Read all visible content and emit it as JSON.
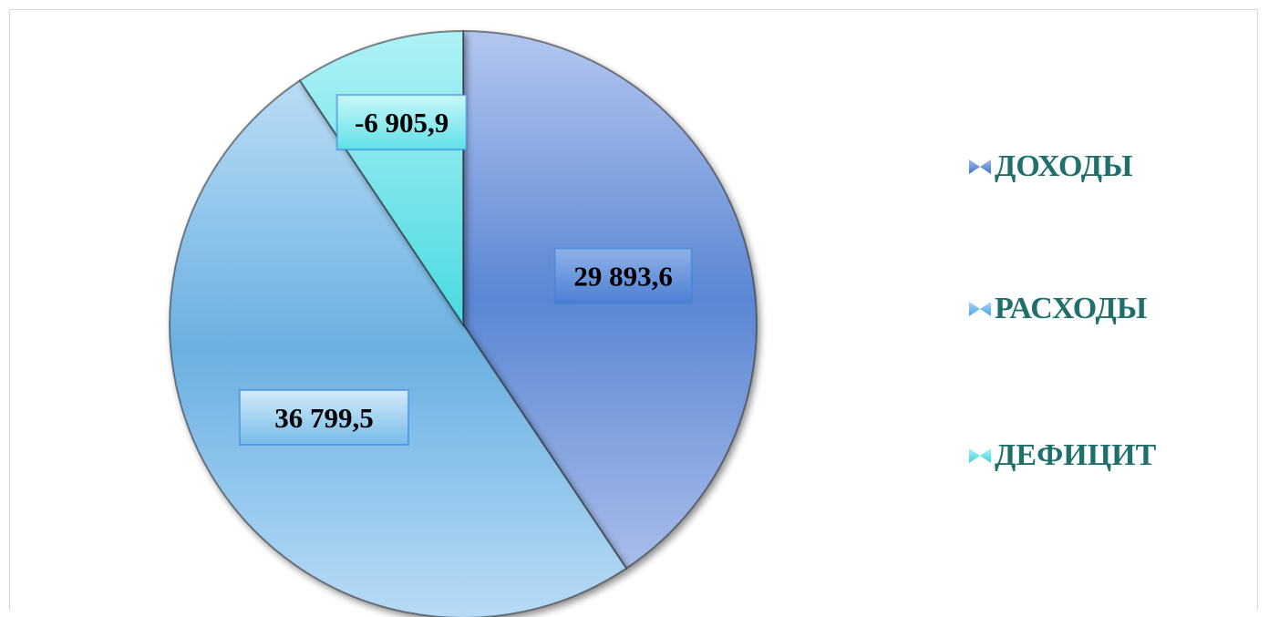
{
  "chart_data": {
    "type": "pie",
    "title": "",
    "slices": [
      {
        "name": "ДОХОДЫ",
        "value": 29893.6,
        "label": "29 893,6",
        "color": "#5f8ed6"
      },
      {
        "name": "РАСХОДЫ",
        "value": 36799.5,
        "label": "36 799,5",
        "color": "#6fb6e6"
      },
      {
        "name": "ДЕФИЦИТ",
        "value": -6905.9,
        "label": "-6 905,9",
        "color": "#6fe2ea"
      }
    ],
    "legend_position": "right"
  }
}
